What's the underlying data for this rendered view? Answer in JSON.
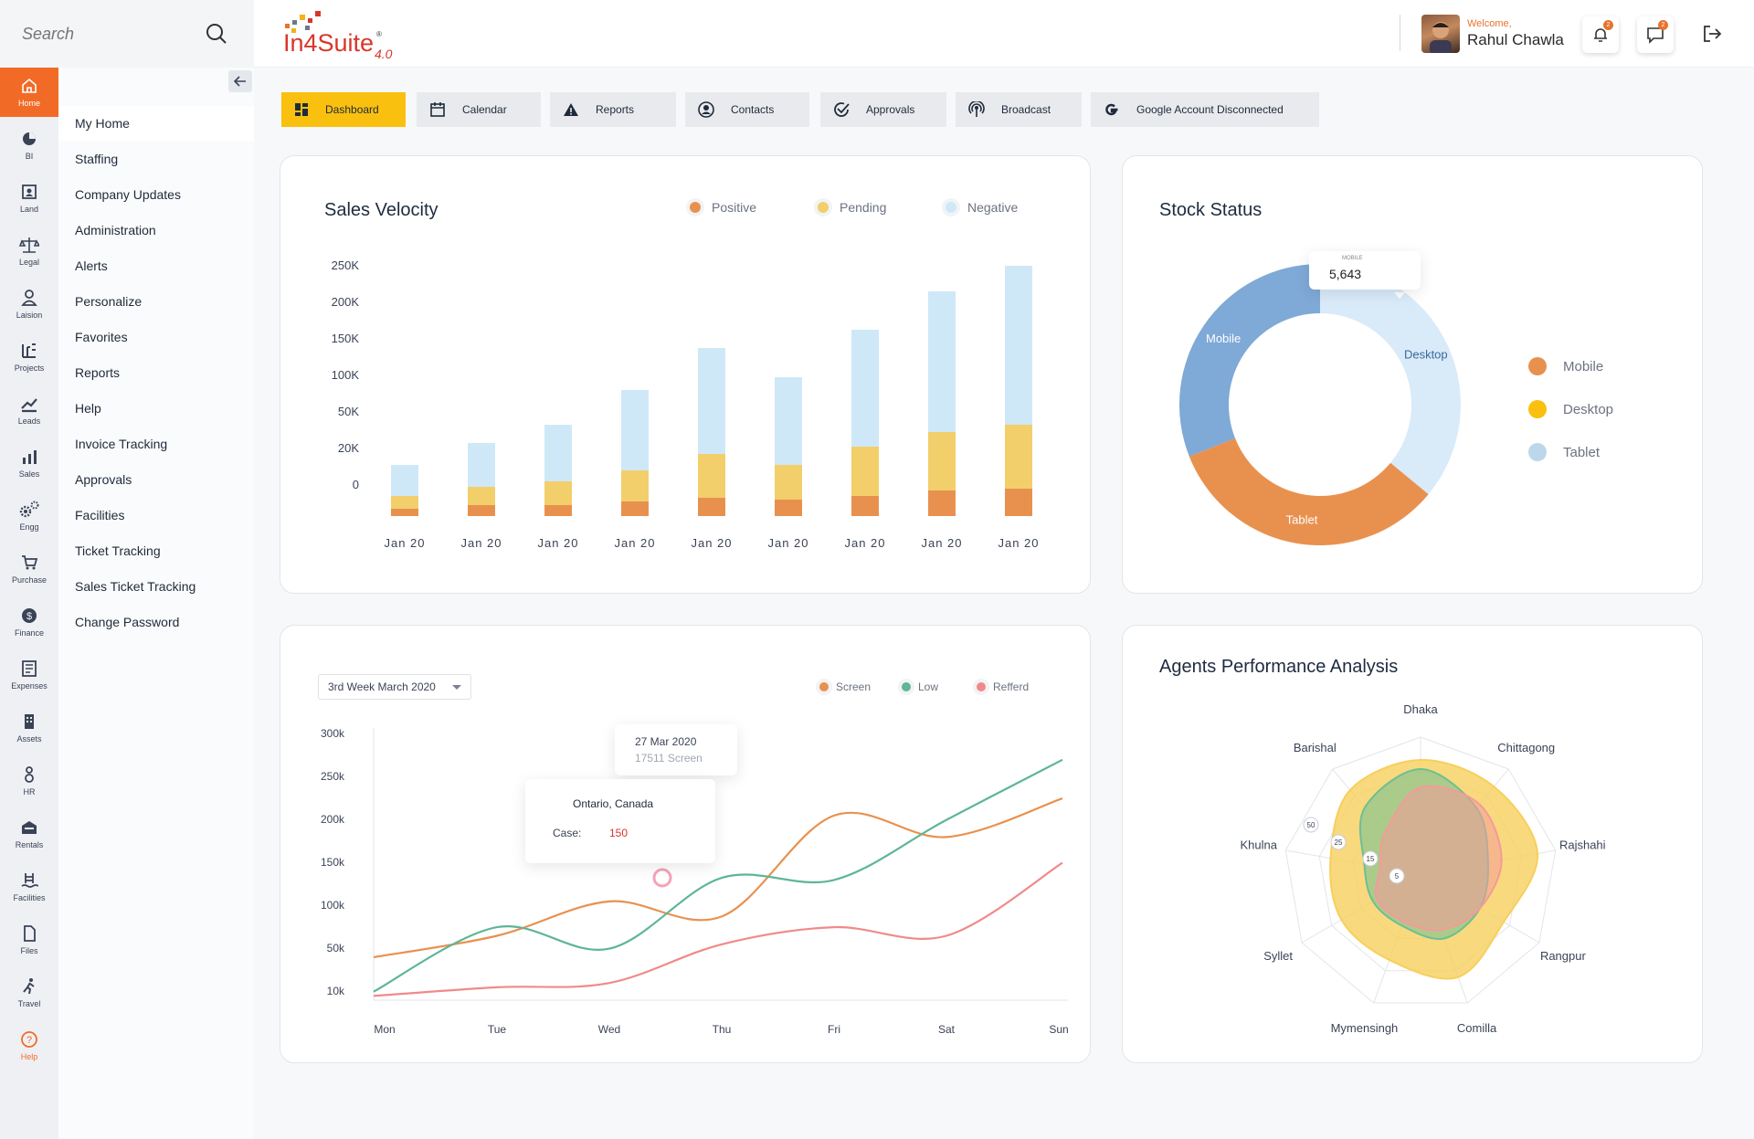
{
  "search": {
    "placeholder": "Search"
  },
  "header": {
    "welcome": "Welcome,",
    "user_name": "Rahul Chawla",
    "notif_count": "2",
    "msg_count": "2",
    "logo_main": "In4Suite",
    "logo_reg": "®",
    "logo_version": "4.0"
  },
  "rail": [
    {
      "label": "Home",
      "icon": "home-icon"
    },
    {
      "label": "BI",
      "icon": "pie-icon"
    },
    {
      "label": "Land",
      "icon": "land-icon"
    },
    {
      "label": "Legal",
      "icon": "scale-icon"
    },
    {
      "label": "Laision",
      "icon": "person-icon"
    },
    {
      "label": "Projects",
      "icon": "projects-icon"
    },
    {
      "label": "Leads",
      "icon": "trend-icon"
    },
    {
      "label": "Sales",
      "icon": "bars-icon"
    },
    {
      "label": "Engg",
      "icon": "gears-icon"
    },
    {
      "label": "Purchase",
      "icon": "cart-icon"
    },
    {
      "label": "Finance",
      "icon": "dollar-icon"
    },
    {
      "label": "Expenses",
      "icon": "register-icon"
    },
    {
      "label": "Assets",
      "icon": "building-icon"
    },
    {
      "label": "HR",
      "icon": "people-icon"
    },
    {
      "label": "Rentals",
      "icon": "rentals-icon"
    },
    {
      "label": "Facilities",
      "icon": "pool-icon"
    },
    {
      "label": "Files",
      "icon": "file-icon"
    },
    {
      "label": "Travel",
      "icon": "walk-icon"
    },
    {
      "label": "Help",
      "icon": "question-icon"
    }
  ],
  "menu": [
    "My Home",
    "Staffing",
    "Company Updates",
    "Administration",
    "Alerts",
    "Personalize",
    "Favorites",
    "Reports",
    "Help",
    "Invoice Tracking",
    "Approvals",
    "Facilities",
    "Ticket Tracking",
    "Sales Ticket Tracking",
    "Change Password"
  ],
  "tabs": [
    {
      "label": "Dashboard",
      "icon": "dashboard-icon"
    },
    {
      "label": "Calendar",
      "icon": "calendar-icon"
    },
    {
      "label": "Reports",
      "icon": "warning-icon"
    },
    {
      "label": "Contacts",
      "icon": "contact-icon"
    },
    {
      "label": "Approvals",
      "icon": "check-circle-icon"
    },
    {
      "label": "Broadcast",
      "icon": "broadcast-icon"
    },
    {
      "label": "Google Account Disconnected",
      "icon": "google-icon"
    }
  ],
  "colors": {
    "accent": "#f26b26",
    "tab_active": "#f9c00f",
    "positive": "#e8914f",
    "pending": "#f2cf6a",
    "negative": "#cfe8f8"
  },
  "sales_velocity": {
    "title": "Sales Velocity",
    "legend": [
      "Positive",
      "Pending",
      "Negative"
    ],
    "chart_data": {
      "type": "bar",
      "stacked": true,
      "title": "Sales Velocity",
      "categories": [
        "Jan 20",
        "Jan 20",
        "Jan 20",
        "Jan 20",
        "Jan 20",
        "Jan 20",
        "Jan 20",
        "Jan 20",
        "Jan 20"
      ],
      "y_tick_labels": [
        "0",
        "20K",
        "50K",
        "100K",
        "150K",
        "200K",
        "250K"
      ],
      "ylim": [
        0,
        6.8
      ],
      "note": "values in tick-step units (1 step = one gridline)",
      "series": [
        {
          "name": "Positive",
          "values": [
            0.2,
            0.3,
            0.3,
            0.4,
            0.5,
            0.45,
            0.55,
            0.7,
            0.75
          ]
        },
        {
          "name": "Pending",
          "values": [
            0.35,
            0.5,
            0.65,
            0.85,
            1.2,
            0.95,
            1.35,
            1.6,
            1.75
          ]
        },
        {
          "name": "Negative",
          "values": [
            0.85,
            1.2,
            1.55,
            2.2,
            2.9,
            2.4,
            3.2,
            3.85,
            4.35
          ]
        }
      ]
    }
  },
  "stock_status": {
    "title": "Stock Status",
    "legend": [
      "Mobile",
      "Desktop",
      "Tablet"
    ],
    "tooltip_label": "MOBILE",
    "tooltip_value": "5,643",
    "chart_data": {
      "type": "pie",
      "donut": true,
      "title": "Stock Status",
      "labels": [
        "Desktop",
        "Tablet",
        "Mobile"
      ],
      "values": [
        36,
        33,
        31
      ]
    }
  },
  "line_chart": {
    "week_select": "3rd Week March 2020",
    "legend": [
      "Screen",
      "Low",
      "Refferd"
    ],
    "tooltip_date": "27 Mar 2020",
    "tooltip_screen": "17511 Screen",
    "tooltip_location": "Ontario, Canada",
    "tooltip_case_label": "Case:",
    "tooltip_case_value": "150",
    "chart_data": {
      "type": "line",
      "x": [
        "Mon",
        "Tue",
        "Wed",
        "Thu",
        "Fri",
        "Sat",
        "Sun"
      ],
      "y_tick_labels": [
        "10k",
        "50k",
        "100k",
        "150k",
        "200k",
        "250k",
        "300k"
      ],
      "ylim": [
        0,
        6
      ],
      "note": "values in tick-step units",
      "series": [
        {
          "name": "Screen",
          "color": "#e8914f",
          "values": [
            1.0,
            1.5,
            2.3,
            1.95,
            4.3,
            3.8,
            4.7
          ]
        },
        {
          "name": "Low",
          "color": "#5fb597",
          "values": [
            0.2,
            1.7,
            1.2,
            2.85,
            2.8,
            4.2,
            5.6
          ]
        },
        {
          "name": "Refferd",
          "color": "#f08a8a",
          "values": [
            0.1,
            0.3,
            0.4,
            1.3,
            1.7,
            1.5,
            3.2
          ]
        }
      ]
    }
  },
  "agents": {
    "title": "Agents Performance Analysis",
    "chart_data": {
      "type": "radar",
      "title": "Agents Performance Analysis",
      "axes": [
        "Dhaka",
        "Chittagong",
        "Rajshahi",
        "Rangpur",
        "Comilla",
        "Mymensingh",
        "Syllet",
        "Khulna",
        "Barishal"
      ],
      "scale_labels": [
        "5",
        "15",
        "25",
        "50"
      ],
      "rmax": 60,
      "series": [
        {
          "name": "Outer",
          "color": "#f7cf5c",
          "values": [
            50,
            50,
            52,
            42,
            48,
            40,
            40,
            40,
            48
          ]
        },
        {
          "name": "Middle",
          "color": "#6cbf95",
          "values": [
            46,
            38,
            30,
            30,
            30,
            24,
            24,
            25,
            38
          ]
        },
        {
          "name": "Inner",
          "color": "#f59a9a",
          "values": [
            38,
            40,
            36,
            30,
            26,
            22,
            22,
            18,
            24
          ]
        }
      ]
    }
  }
}
